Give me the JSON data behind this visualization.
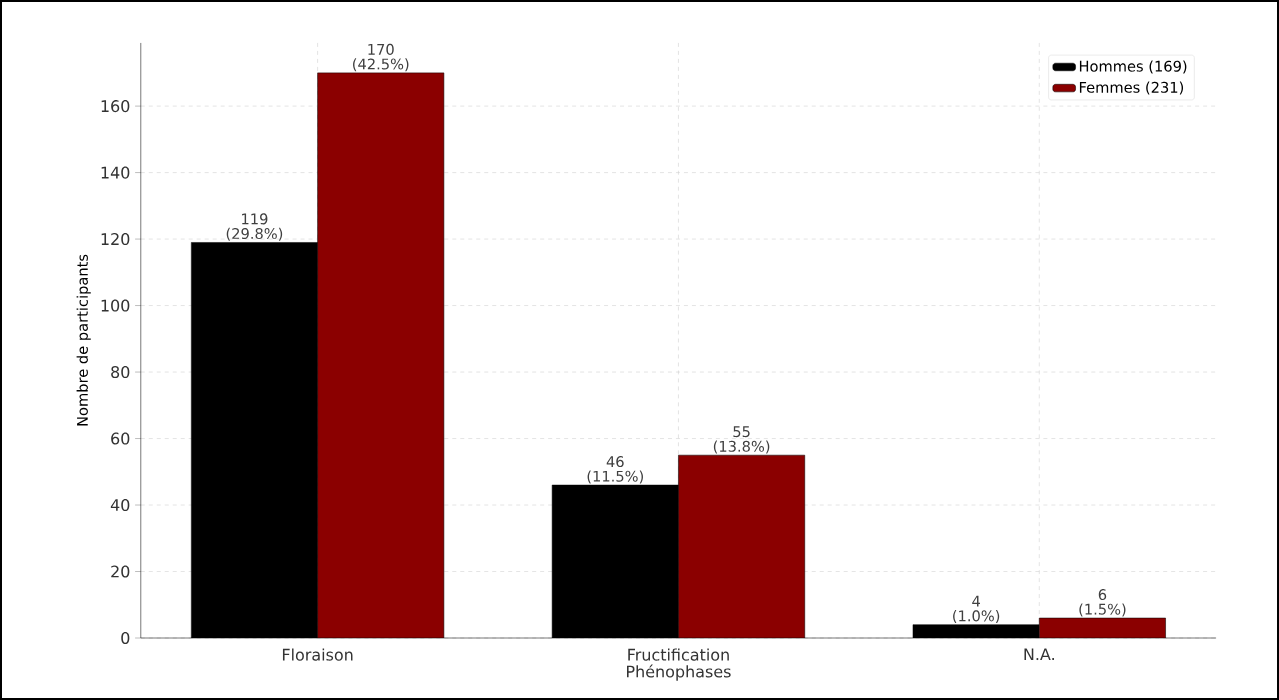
{
  "chart_data": {
    "type": "bar",
    "xlabel": "Phénophases",
    "ylabel": "Nombre de participants",
    "categories": [
      "Floraison",
      "Fructification",
      "N.A."
    ],
    "series": [
      {
        "name": "Hommes (169)",
        "color": "#000000",
        "values": [
          119,
          46,
          4
        ],
        "value_labels": [
          "119 (29.8%)",
          "46 (11.5%)",
          "4 (1.0%)"
        ]
      },
      {
        "name": "Femmes (231)",
        "color": "#8b0000",
        "values": [
          170,
          55,
          6
        ],
        "value_labels": [
          "170 (42.5%)",
          "55 (13.8%)",
          "6 (1.5%)"
        ]
      }
    ],
    "ylim": [
      0,
      179
    ],
    "yticks": [
      0,
      20,
      40,
      60,
      80,
      100,
      120,
      140,
      160
    ],
    "grid": true,
    "legend": "top right"
  }
}
